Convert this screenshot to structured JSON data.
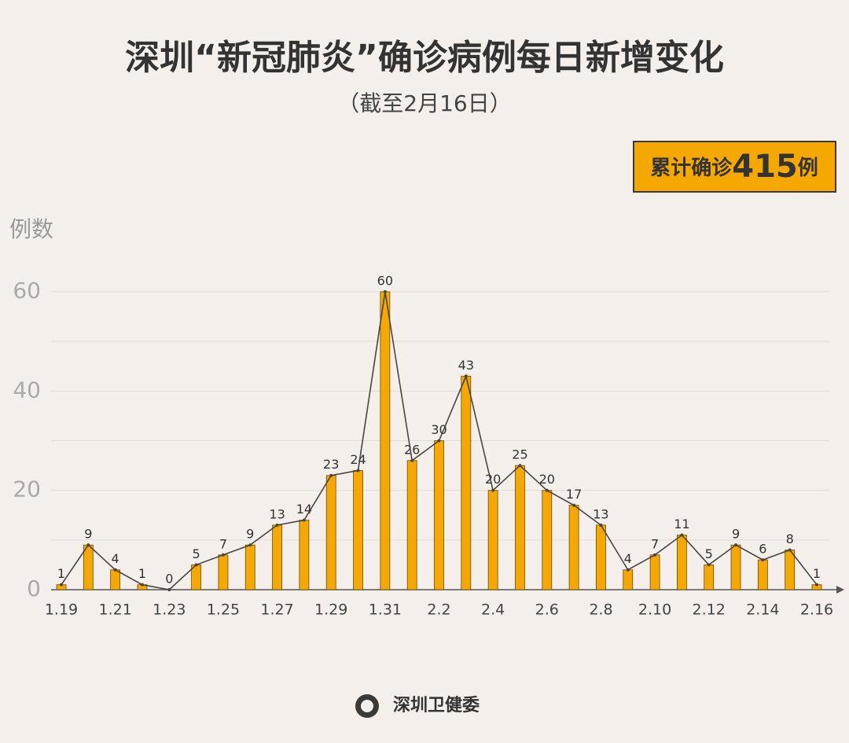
{
  "chart_data": {
    "type": "bar-line",
    "title": "深圳“新冠肺炎”确诊病例每日新增变化",
    "subtitle": "（截至2月16日）",
    "total": {
      "prefix": "累计确诊",
      "value": 415,
      "suffix": "例"
    },
    "y_label": "例数",
    "categories": [
      "1.19",
      null,
      "1.21",
      null,
      "1.23",
      null,
      "1.25",
      null,
      "1.27",
      null,
      "1.29",
      null,
      "1.31",
      null,
      "2.2",
      null,
      "2.4",
      null,
      "2.6",
      null,
      "2.8",
      null,
      "2.10",
      null,
      "2.12",
      null,
      "2.14",
      null,
      "2.16"
    ],
    "values": [
      1,
      9,
      4,
      1,
      0,
      5,
      7,
      9,
      13,
      14,
      23,
      24,
      60,
      26,
      30,
      43,
      20,
      25,
      20,
      17,
      13,
      4,
      7,
      11,
      5,
      9,
      6,
      8,
      1
    ],
    "color": "#f5a800",
    "line_color": "#4a4540",
    "ylim": [
      0,
      60
    ],
    "yticks": [
      0,
      20,
      40,
      60
    ],
    "minor_yticks": [
      10,
      30,
      50
    ],
    "grid": true,
    "source": "深圳卫健委"
  }
}
